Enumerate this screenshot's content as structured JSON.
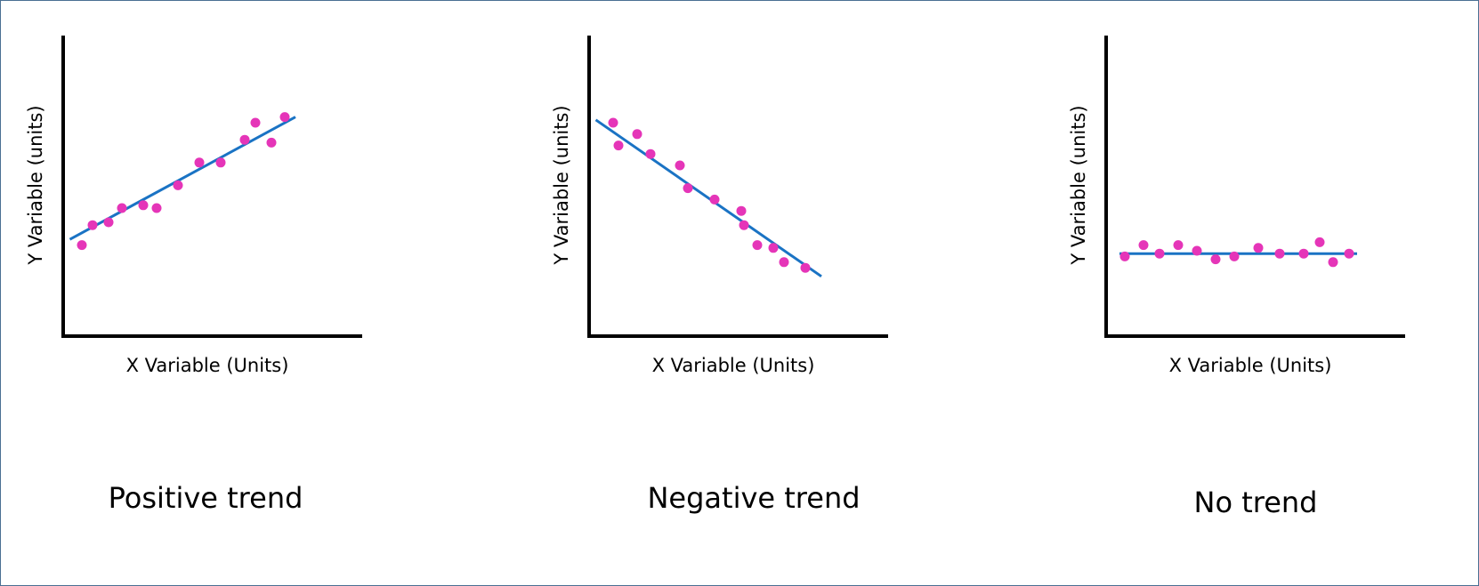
{
  "chart_data": [
    {
      "type": "scatter",
      "xlabel": "X Variable (Units)",
      "ylabel": "Y Variable (units)",
      "caption": "Positive trend",
      "xlim": [
        0,
        10
      ],
      "ylim": [
        0,
        10
      ],
      "points": [
        {
          "x": 0.7,
          "y": 3.2
        },
        {
          "x": 1.1,
          "y": 3.9
        },
        {
          "x": 1.7,
          "y": 4.0
        },
        {
          "x": 2.2,
          "y": 4.5
        },
        {
          "x": 3.0,
          "y": 4.6
        },
        {
          "x": 3.5,
          "y": 4.5
        },
        {
          "x": 4.3,
          "y": 5.3
        },
        {
          "x": 5.1,
          "y": 6.1
        },
        {
          "x": 5.9,
          "y": 6.1
        },
        {
          "x": 6.8,
          "y": 6.9
        },
        {
          "x": 7.2,
          "y": 7.5
        },
        {
          "x": 7.8,
          "y": 6.8
        },
        {
          "x": 8.3,
          "y": 7.7
        }
      ],
      "trend_line": {
        "x": [
          0.25,
          8.7
        ],
        "y": [
          3.4,
          7.7
        ]
      }
    },
    {
      "type": "scatter",
      "xlabel": "X Variable (Units)",
      "ylabel": "Y Variable (units)",
      "caption": "Negative trend",
      "xlim": [
        0,
        10
      ],
      "ylim": [
        0,
        10
      ],
      "points": [
        {
          "x": 0.9,
          "y": 7.5
        },
        {
          "x": 1.1,
          "y": 6.7
        },
        {
          "x": 1.8,
          "y": 7.1
        },
        {
          "x": 2.3,
          "y": 6.4
        },
        {
          "x": 3.4,
          "y": 6.0
        },
        {
          "x": 3.7,
          "y": 5.2
        },
        {
          "x": 4.7,
          "y": 4.8
        },
        {
          "x": 5.7,
          "y": 4.4
        },
        {
          "x": 5.8,
          "y": 3.9
        },
        {
          "x": 6.3,
          "y": 3.2
        },
        {
          "x": 6.9,
          "y": 3.1
        },
        {
          "x": 7.3,
          "y": 2.6
        },
        {
          "x": 8.1,
          "y": 2.4
        }
      ],
      "trend_line": {
        "x": [
          0.25,
          8.7
        ],
        "y": [
          7.6,
          2.1
        ]
      }
    },
    {
      "type": "scatter",
      "xlabel": "X Variable (Units)",
      "ylabel": "Y Variable (units)",
      "caption": "No trend",
      "xlim": [
        0,
        10
      ],
      "ylim": [
        0,
        10
      ],
      "points": [
        {
          "x": 0.7,
          "y": 2.8
        },
        {
          "x": 1.4,
          "y": 3.2
        },
        {
          "x": 2.0,
          "y": 2.9
        },
        {
          "x": 2.7,
          "y": 3.2
        },
        {
          "x": 3.4,
          "y": 3.0
        },
        {
          "x": 4.1,
          "y": 2.7
        },
        {
          "x": 4.8,
          "y": 2.8
        },
        {
          "x": 5.7,
          "y": 3.1
        },
        {
          "x": 6.5,
          "y": 2.9
        },
        {
          "x": 7.4,
          "y": 2.9
        },
        {
          "x": 8.0,
          "y": 3.3
        },
        {
          "x": 8.5,
          "y": 2.6
        },
        {
          "x": 9.1,
          "y": 2.9
        }
      ],
      "trend_line": {
        "x": [
          0.5,
          9.4
        ],
        "y": [
          2.9,
          2.9
        ]
      }
    }
  ],
  "colors": {
    "points": "#e535b8",
    "trend_line": "#1a73c4",
    "axes": "#000000",
    "frame": "#4a6f93"
  }
}
